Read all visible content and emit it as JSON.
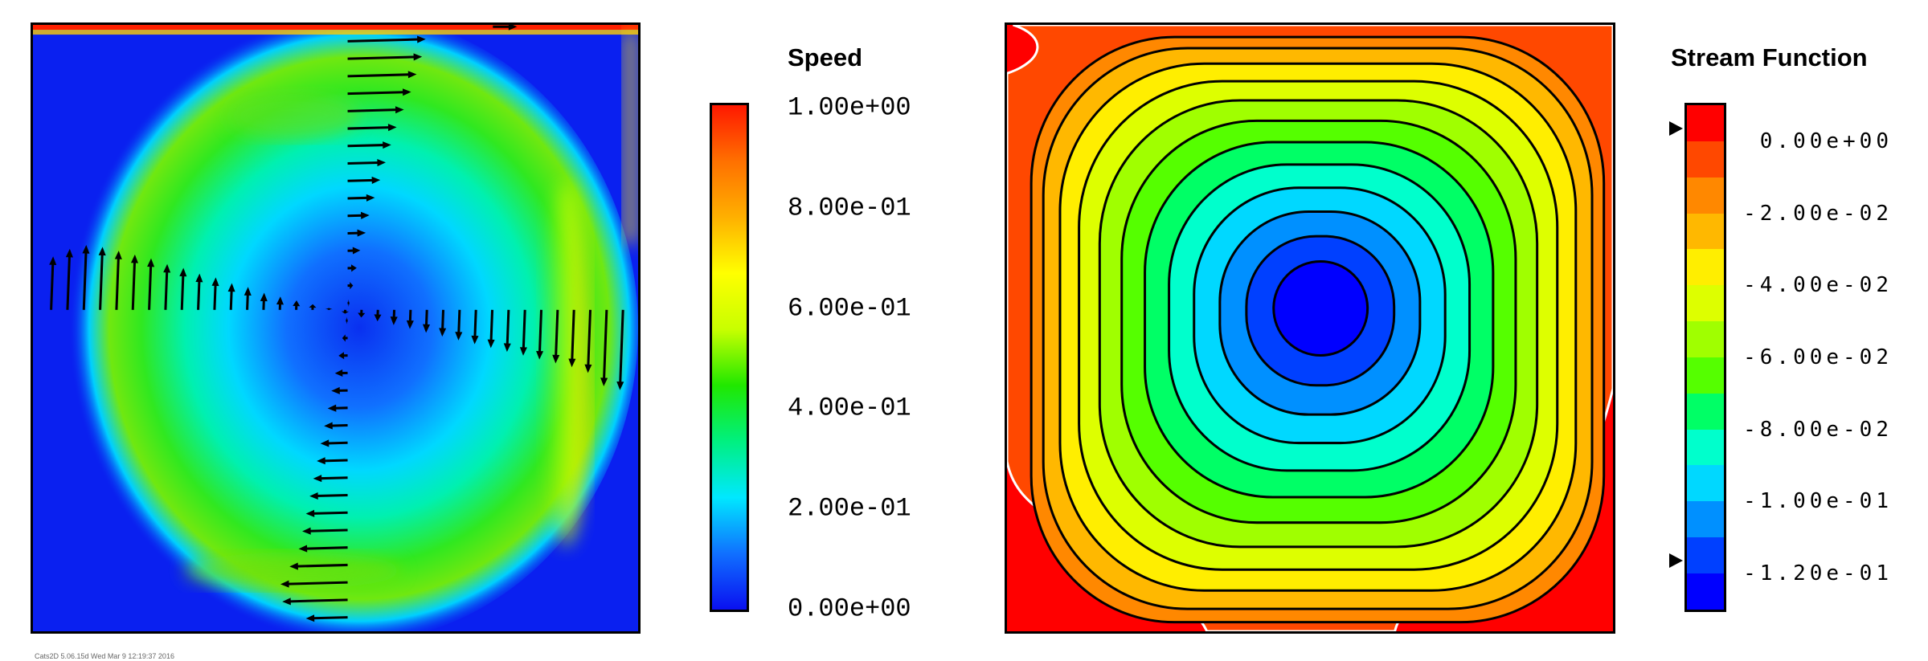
{
  "footer": "Cats2D 5.06.15d Wed Mar  9 12:19:37 2016",
  "chart_data": [
    {
      "type": "heatmap",
      "title": "Speed",
      "colorbar": {
        "range": [
          0,
          1
        ],
        "ticks": [
          "1.00e+00",
          "8.00e-01",
          "6.00e-01",
          "4.00e-01",
          "2.00e-01",
          "0.00e+00"
        ],
        "tick_values": [
          1.0,
          0.8,
          0.6,
          0.4,
          0.2,
          0.0
        ],
        "colors": [
          "#0a10f0",
          "#1070ff",
          "#00e8ff",
          "#00f080",
          "#20e800",
          "#c8ff00",
          "#ffff00",
          "#ffb000",
          "#ff7000",
          "#ff1800"
        ]
      },
      "lid_velocity": 1.0,
      "vectors": {
        "vertical_centerline_u": [
          0.43,
          0.41,
          0.38,
          0.35,
          0.31,
          0.27,
          0.24,
          0.21,
          0.18,
          0.15,
          0.12,
          0.1,
          0.07,
          0.05,
          0.03,
          0.01,
          -0.01,
          -0.03,
          -0.05,
          -0.07,
          -0.09,
          -0.11,
          -0.13,
          -0.15,
          -0.17,
          -0.19,
          -0.21,
          -0.23,
          -0.25,
          -0.27,
          -0.32,
          -0.37,
          -0.36,
          -0.23
        ],
        "horizontal_centerline_v": [
          0.28,
          0.32,
          0.34,
          0.33,
          0.31,
          0.29,
          0.27,
          0.24,
          0.22,
          0.19,
          0.17,
          0.14,
          0.12,
          0.09,
          0.07,
          0.05,
          0.03,
          0.01,
          -0.02,
          -0.04,
          -0.06,
          -0.08,
          -0.1,
          -0.12,
          -0.14,
          -0.16,
          -0.18,
          -0.2,
          -0.22,
          -0.24,
          -0.26,
          -0.28,
          -0.3,
          -0.33,
          -0.4,
          -0.42
        ],
        "horizontal_centerline_y": 0.53,
        "vertical_centerline_x": 0.52
      }
    },
    {
      "type": "heatmap",
      "title": "Stream Function",
      "colorbar": {
        "range": [
          0.01,
          -0.13
        ],
        "ticks": [
          "0.00e+00",
          "-2.00e-02",
          "-4.00e-02",
          "-6.00e-02",
          "-8.00e-02",
          "-1.00e-01",
          "-1.20e-01"
        ],
        "tick_values": [
          0,
          -0.02,
          -0.04,
          -0.06,
          -0.08,
          -0.1,
          -0.12
        ],
        "band_colors": [
          "#ff0000",
          "#ff4800",
          "#ff8800",
          "#ffb800",
          "#ffee00",
          "#ddff00",
          "#a0ff00",
          "#55ff00",
          "#00ff66",
          "#00ffcc",
          "#00d8ff",
          "#0090ff",
          "#0040ff",
          "#0000ff"
        ],
        "markers": [
          0,
          -0.12
        ]
      },
      "contour_levels": [
        0,
        -0.01,
        -0.02,
        -0.03,
        -0.04,
        -0.05,
        -0.06,
        -0.07,
        -0.08,
        -0.09,
        -0.1,
        -0.11,
        -0.12
      ],
      "vortex_center": [
        0.52,
        0.54
      ],
      "psi_min": -0.125
    }
  ]
}
